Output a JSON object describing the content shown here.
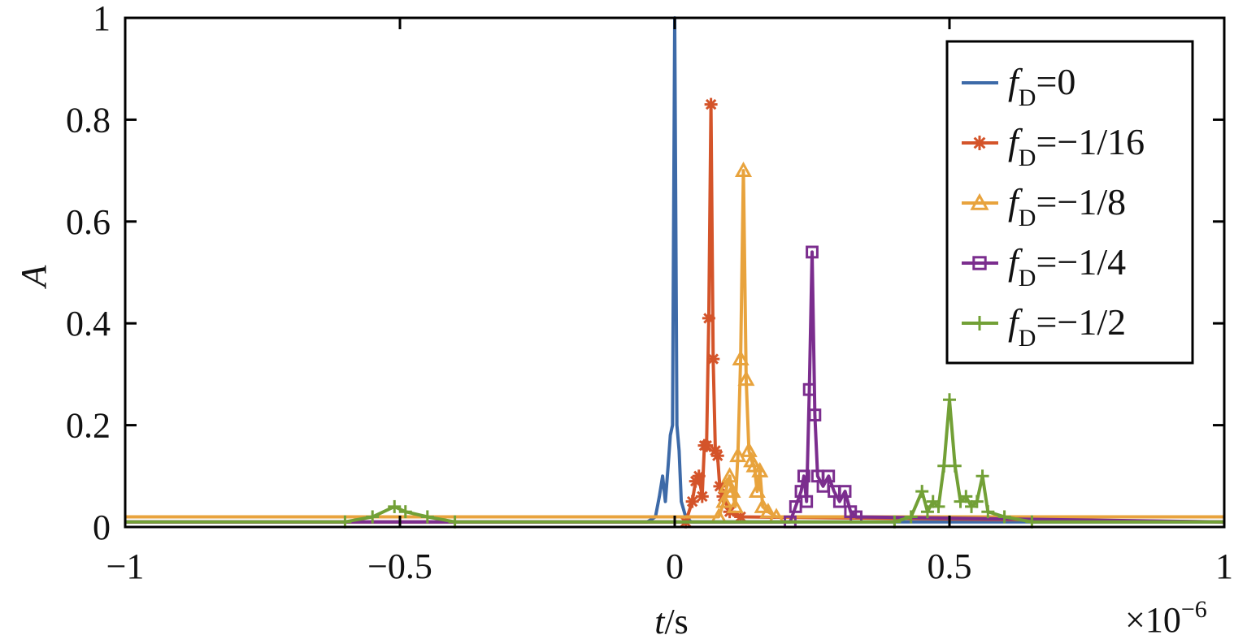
{
  "chart_data": {
    "type": "line",
    "xlabel_var": "t",
    "xlabel_unit": "/s",
    "ylabel": "A",
    "x_multiplier": "×10",
    "x_multiplier_exp": "−6",
    "xlim": [
      -1,
      1
    ],
    "ylim": [
      0,
      1
    ],
    "x_ticks": [
      -1,
      -0.5,
      0,
      0.5,
      1
    ],
    "x_tick_labels": [
      "−1",
      "−0.5",
      "0",
      "0.5",
      "1"
    ],
    "y_ticks": [
      0,
      0.2,
      0.4,
      0.6,
      0.8,
      1
    ],
    "y_tick_labels": [
      "0",
      "0.2",
      "0.4",
      "0.6",
      "0.8",
      "1"
    ],
    "grid": false,
    "legend_position": "top-right",
    "series": [
      {
        "name": "fD=0",
        "legend_var": "f",
        "legend_sub": "D",
        "legend_val": "=0",
        "color": "#3d6aa8",
        "marker": "none",
        "points": [
          [
            -1,
            0.01
          ],
          [
            -0.05,
            0.01
          ],
          [
            -0.035,
            0.02
          ],
          [
            -0.028,
            0.06
          ],
          [
            -0.022,
            0.1
          ],
          [
            -0.017,
            0.05
          ],
          [
            -0.012,
            0.12
          ],
          [
            -0.008,
            0.18
          ],
          [
            -0.004,
            0.2
          ],
          [
            0,
            1.0
          ],
          [
            0.004,
            0.2
          ],
          [
            0.008,
            0.15
          ],
          [
            0.012,
            0.05
          ],
          [
            0.02,
            0.02
          ],
          [
            0.03,
            0.01
          ],
          [
            1,
            0.01
          ]
        ]
      },
      {
        "name": "fD=−1/16",
        "legend_var": "f",
        "legend_sub": "D",
        "legend_val": "=−1/16",
        "color": "#d4542a",
        "marker": "asterisk",
        "points": [
          [
            -1,
            0.01
          ],
          [
            0.02,
            0.01
          ],
          [
            0.032,
            0.05
          ],
          [
            0.038,
            0.09
          ],
          [
            0.044,
            0.1
          ],
          [
            0.05,
            0.06
          ],
          [
            0.054,
            0.16
          ],
          [
            0.058,
            0.16
          ],
          [
            0.062,
            0.41
          ],
          [
            0.066,
            0.83
          ],
          [
            0.07,
            0.33
          ],
          [
            0.074,
            0.15
          ],
          [
            0.078,
            0.14
          ],
          [
            0.082,
            0.08
          ],
          [
            0.088,
            0.06
          ],
          [
            0.1,
            0.03
          ],
          [
            0.12,
            0.02
          ],
          [
            1,
            0.01
          ]
        ]
      },
      {
        "name": "fD=−1/8",
        "legend_var": "f",
        "legend_sub": "D",
        "legend_val": "=−1/8",
        "color": "#e8a33d",
        "marker": "triangle",
        "points": [
          [
            -1,
            0.02
          ],
          [
            0.08,
            0.02
          ],
          [
            0.09,
            0.05
          ],
          [
            0.095,
            0.08
          ],
          [
            0.1,
            0.1
          ],
          [
            0.105,
            0.07
          ],
          [
            0.11,
            0.04
          ],
          [
            0.115,
            0.14
          ],
          [
            0.12,
            0.33
          ],
          [
            0.125,
            0.7
          ],
          [
            0.13,
            0.29
          ],
          [
            0.135,
            0.15
          ],
          [
            0.14,
            0.13
          ],
          [
            0.145,
            0.12
          ],
          [
            0.15,
            0.07
          ],
          [
            0.155,
            0.11
          ],
          [
            0.16,
            0.04
          ],
          [
            0.17,
            0.03
          ],
          [
            0.185,
            0.02
          ],
          [
            1,
            0.02
          ]
        ]
      },
      {
        "name": "fD=−1/4",
        "legend_var": "f",
        "legend_sub": "D",
        "legend_val": "=−1/4",
        "color": "#7b2d8e",
        "marker": "square",
        "points": [
          [
            -1,
            0.01
          ],
          [
            0.21,
            0.01
          ],
          [
            0.22,
            0.04
          ],
          [
            0.23,
            0.07
          ],
          [
            0.235,
            0.1
          ],
          [
            0.24,
            0.05
          ],
          [
            0.245,
            0.27
          ],
          [
            0.25,
            0.54
          ],
          [
            0.255,
            0.22
          ],
          [
            0.26,
            0.1
          ],
          [
            0.27,
            0.08
          ],
          [
            0.28,
            0.1
          ],
          [
            0.29,
            0.07
          ],
          [
            0.3,
            0.05
          ],
          [
            0.31,
            0.07
          ],
          [
            0.32,
            0.03
          ],
          [
            0.33,
            0.02
          ],
          [
            1,
            0.01
          ]
        ]
      },
      {
        "name": "fD=−1/2",
        "legend_var": "f",
        "legend_sub": "D",
        "legend_val": "=−1/2",
        "color": "#72a036",
        "marker": "plus",
        "points": [
          [
            -1,
            0.01
          ],
          [
            -0.6,
            0.01
          ],
          [
            -0.55,
            0.02
          ],
          [
            -0.51,
            0.04
          ],
          [
            -0.49,
            0.03
          ],
          [
            -0.45,
            0.02
          ],
          [
            -0.4,
            0.01
          ],
          [
            0.4,
            0.01
          ],
          [
            0.43,
            0.02
          ],
          [
            0.45,
            0.07
          ],
          [
            0.46,
            0.03
          ],
          [
            0.47,
            0.05
          ],
          [
            0.48,
            0.04
          ],
          [
            0.49,
            0.12
          ],
          [
            0.5,
            0.25
          ],
          [
            0.51,
            0.12
          ],
          [
            0.52,
            0.05
          ],
          [
            0.53,
            0.06
          ],
          [
            0.54,
            0.04
          ],
          [
            0.55,
            0.05
          ],
          [
            0.56,
            0.1
          ],
          [
            0.57,
            0.03
          ],
          [
            0.6,
            0.02
          ],
          [
            0.65,
            0.01
          ],
          [
            1,
            0.01
          ]
        ]
      }
    ]
  }
}
